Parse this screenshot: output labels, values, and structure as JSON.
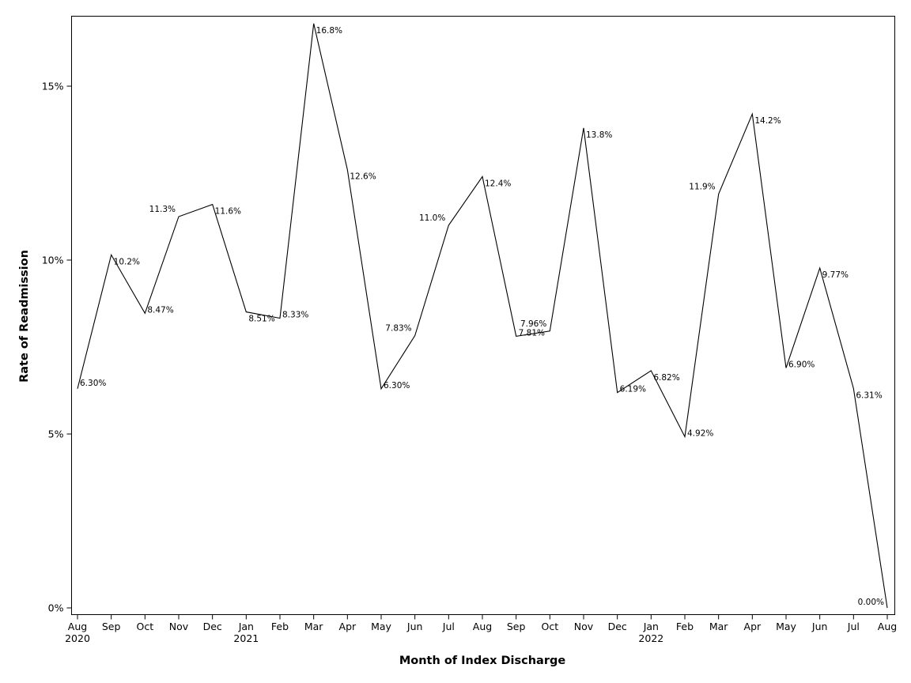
{
  "chart_data": {
    "type": "line",
    "xlabel": "Month of Index Discharge",
    "ylabel": "Rate of Readmission",
    "ylim": [
      0,
      16.8
    ],
    "y_ticks": [
      {
        "value": 0,
        "label": "0%"
      },
      {
        "value": 5,
        "label": "5%"
      },
      {
        "value": 10,
        "label": "10%"
      },
      {
        "value": 15,
        "label": "15%"
      }
    ],
    "grid": false,
    "legend": "none",
    "categories": [
      {
        "month": "Aug",
        "year": "2020"
      },
      {
        "month": "Sep",
        "year": ""
      },
      {
        "month": "Oct",
        "year": ""
      },
      {
        "month": "Nov",
        "year": ""
      },
      {
        "month": "Dec",
        "year": ""
      },
      {
        "month": "Jan",
        "year": "2021"
      },
      {
        "month": "Feb",
        "year": ""
      },
      {
        "month": "Mar",
        "year": ""
      },
      {
        "month": "Apr",
        "year": ""
      },
      {
        "month": "May",
        "year": ""
      },
      {
        "month": "Jun",
        "year": ""
      },
      {
        "month": "Jul",
        "year": ""
      },
      {
        "month": "Aug",
        "year": ""
      },
      {
        "month": "Sep",
        "year": ""
      },
      {
        "month": "Oct",
        "year": ""
      },
      {
        "month": "Nov",
        "year": ""
      },
      {
        "month": "Dec",
        "year": ""
      },
      {
        "month": "Jan",
        "year": "2022"
      },
      {
        "month": "Feb",
        "year": ""
      },
      {
        "month": "Mar",
        "year": ""
      },
      {
        "month": "Apr",
        "year": ""
      },
      {
        "month": "May",
        "year": ""
      },
      {
        "month": "Jun",
        "year": ""
      },
      {
        "month": "Jul",
        "year": ""
      },
      {
        "month": "Aug",
        "year": ""
      }
    ],
    "values": [
      6.3,
      10.15,
      8.47,
      11.25,
      11.6,
      8.51,
      8.33,
      16.8,
      12.6,
      6.3,
      7.83,
      11.0,
      12.4,
      7.81,
      7.96,
      13.8,
      6.19,
      6.82,
      4.92,
      11.9,
      14.2,
      6.9,
      9.77,
      6.31,
      0.0
    ],
    "data_labels": [
      "6.30%",
      "10.2%",
      "8.47%",
      "11.3%",
      "11.6%",
      "8.51%",
      "8.33%",
      "16.8%",
      "12.6%",
      "6.30%",
      "7.83%",
      "11.0%",
      "12.4%",
      "7.81%",
      "7.96%",
      "13.8%",
      "6.19%",
      "6.82%",
      "4.92%",
      "11.9%",
      "14.2%",
      "6.90%",
      "9.77%",
      "6.31%",
      "0.00%"
    ],
    "line_color": "#000000"
  }
}
